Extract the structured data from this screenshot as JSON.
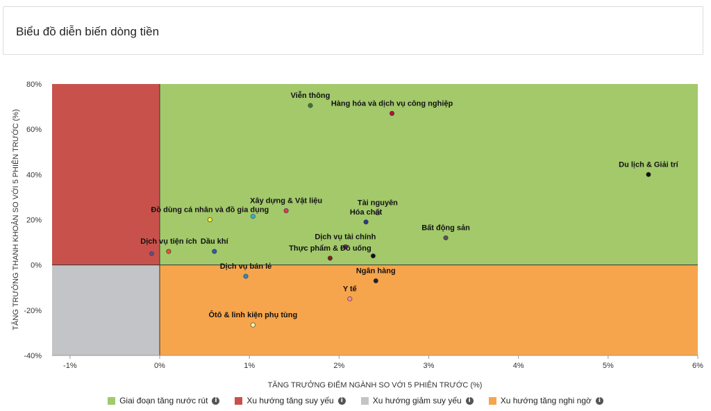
{
  "header": {
    "title": "Biểu đồ diễn biến dòng tiền"
  },
  "chart_data": {
    "type": "scatter",
    "xlabel": "TĂNG TRƯỞNG ĐIỂM NGÀNH SO VỚI 5 PHIÊN TRƯỚC (%)",
    "ylabel": "TĂNG TRƯỞNG THANH KHOẢN SO VỚI 5 PHIÊN TRƯỚC (%)",
    "xlim": [
      -1.2,
      6
    ],
    "ylim": [
      -40,
      80
    ],
    "x_ticks": [
      -1,
      0,
      1,
      2,
      3,
      4,
      5,
      6
    ],
    "x_tick_labels": [
      "-1%",
      "0%",
      "1%",
      "2%",
      "3%",
      "4%",
      "5%",
      "6%"
    ],
    "y_ticks": [
      -40,
      -20,
      0,
      20,
      40,
      60,
      80
    ],
    "y_tick_labels": [
      "-40%",
      "-20%",
      "0%",
      "20%",
      "40%",
      "60%",
      "80%"
    ],
    "quadrants": [
      {
        "name": "Giai đoạn tăng nước rút",
        "color": "#a3c96b",
        "x": [
          0,
          6
        ],
        "y": [
          0,
          80
        ]
      },
      {
        "name": "Xu hướng tăng suy yếu",
        "color": "#c9514c",
        "x": [
          -1.2,
          0
        ],
        "y": [
          0,
          80
        ]
      },
      {
        "name": "Xu hướng giảm suy yếu",
        "color": "#c3c4c7",
        "x": [
          -1.2,
          0
        ],
        "y": [
          -40,
          0
        ]
      },
      {
        "name": "Xu hướng tăng nghi ngờ",
        "color": "#f7a54c",
        "x": [
          0,
          6
        ],
        "y": [
          -40,
          0
        ]
      }
    ],
    "points": [
      {
        "label": "Viễn thông",
        "x": 1.68,
        "y": 70.5,
        "color": "#3a7a3a"
      },
      {
        "label": "Hàng hóa và dịch vụ công nghiệp",
        "x": 2.59,
        "y": 67,
        "color": "#b3123a"
      },
      {
        "label": "Du lịch & Giải trí",
        "x": 5.45,
        "y": 40,
        "color": "#111111"
      },
      {
        "label": "Xây dựng & Vật liệu",
        "x": 1.41,
        "y": 24,
        "color": "#e8335e"
      },
      {
        "label": "Đồ dùng cá nhân và đồ gia dụng",
        "x": 0.56,
        "y": 20,
        "color": "#f3ef3a"
      },
      {
        "label": "Tài nguyên",
        "x": 2.43,
        "y": 23,
        "color": "#9a9a9a"
      },
      {
        "label": "Hóa chất",
        "x": 2.3,
        "y": 19,
        "color": "#2a3a8a"
      },
      {
        "label": "Bất động sản",
        "x": 3.19,
        "y": 12,
        "color": "#555555"
      },
      {
        "label": "Dịch vụ tiện ích",
        "x": 0.1,
        "y": 6,
        "color": "#e8542e"
      },
      {
        "label": "Dầu khí",
        "x": 0.61,
        "y": 6,
        "color": "#2a5fb0"
      },
      {
        "label": "Dịch vụ tài chính",
        "x": 2.07,
        "y": 8,
        "color": "#6a2a8a"
      },
      {
        "label": "Thực phẩm & Đồ uống",
        "x": 1.9,
        "y": 3,
        "color": "#8a1a1a"
      },
      {
        "label": "Dịch vụ bán lẻ",
        "x": 0.96,
        "y": -5,
        "color": "#2a8ad0"
      },
      {
        "label": "Ngân hàng",
        "x": 2.41,
        "y": -7,
        "color": "#222222"
      },
      {
        "label": "Y tế",
        "x": 2.12,
        "y": -15,
        "color": "#f08aa0"
      },
      {
        "label": "Ôtô & linh kiện phụ tùng",
        "x": 1.04,
        "y": -26.5,
        "color": "#f5f5b0"
      }
    ],
    "unlabeled_points": [
      {
        "x": -0.09,
        "y": 5,
        "color": "#6b4a7a"
      },
      {
        "x": 2.38,
        "y": 4,
        "color": "#111111"
      },
      {
        "x": 1.04,
        "y": 21.5,
        "color": "#2fb0d8"
      }
    ]
  },
  "legend": {
    "items": [
      {
        "label": "Giai đoạn tăng nước rút",
        "color": "#a3c96b",
        "icon": "info-icon"
      },
      {
        "label": "Xu hướng tăng suy yếu",
        "color": "#c9514c",
        "icon": "info-icon"
      },
      {
        "label": "Xu hướng giảm suy yếu",
        "color": "#c3c4c7",
        "icon": "info-icon"
      },
      {
        "label": "Xu hướng tăng nghi ngờ",
        "color": "#f7a54c",
        "icon": "info-icon"
      }
    ],
    "info_glyph": "i"
  }
}
